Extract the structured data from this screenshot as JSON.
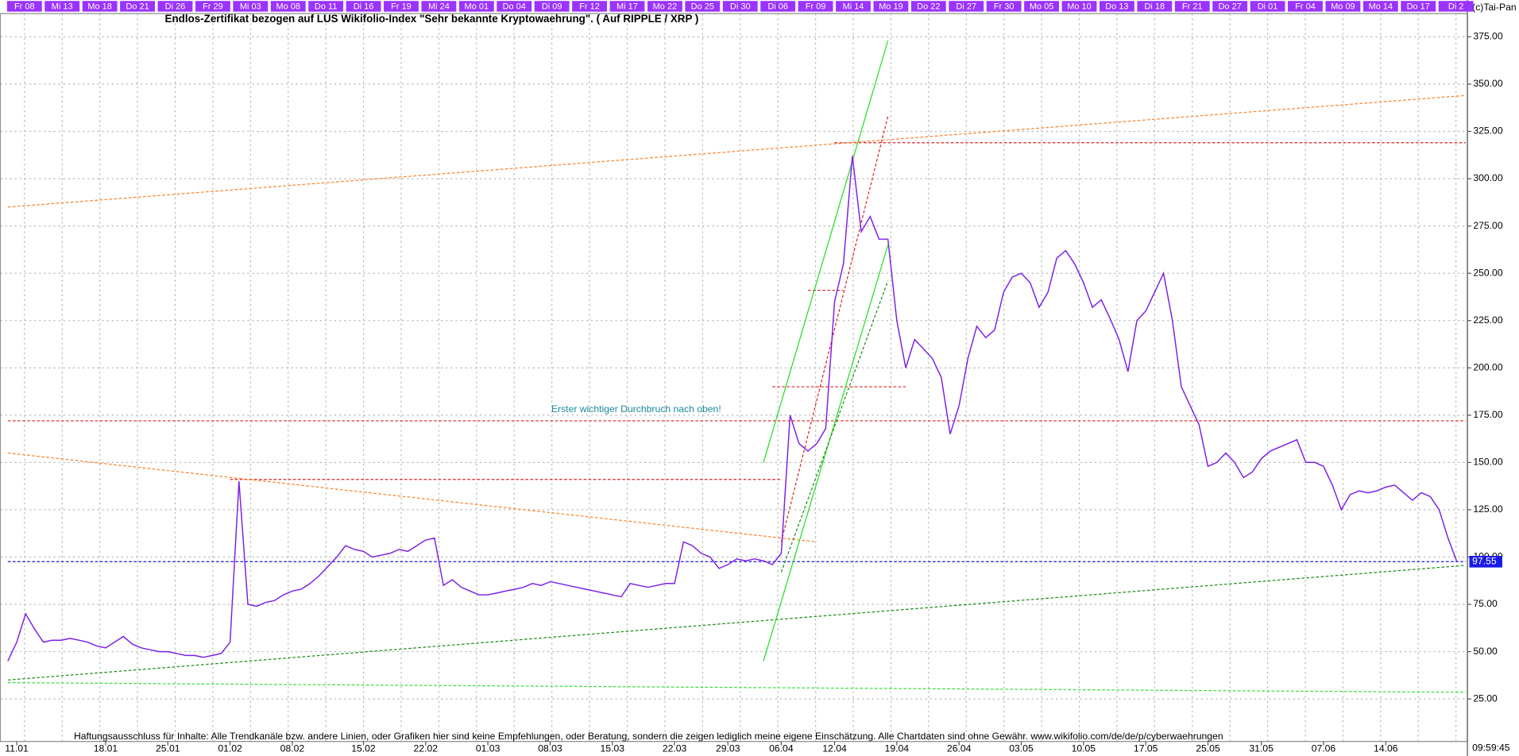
{
  "chart_data": {
    "type": "line",
    "title": "Endlos-Zertifikat bezogen auf LUS Wikifolio-Index \"Sehr bekannte Kryptowaehrung\". ( Auf RIPPLE / XRP )",
    "watermark": "(c)Tai-Pan",
    "time": "09:59:45",
    "annotation": "Erster wichtiger Durchbruch nach oben!",
    "disclaimer": "Haftungsausschluss für Inhalte: Alle Trendkanäle bzw. andere Linien, oder Grafiken hier sind keine Empfehlungen, oder Beratung, sondern die zeigen lediglich meine eigene Einschätzung. Alle Chartdaten sind ohne Gewähr.  www.wikifolio.com/de/de/p/cyberwaehrungen",
    "top_labels": [
      "Fr 08",
      "Mi 13",
      "Mo 18",
      "Do 21",
      "Di 26",
      "Fr 29",
      "Mi 03",
      "Mo 08",
      "Do 11",
      "Di 16",
      "Fr 19",
      "Mi 24",
      "Mo 01",
      "Do 04",
      "Di 09",
      "Fr 12",
      "Mi 17",
      "Mo 22",
      "Do 25",
      "Di 30",
      "Di 06",
      "Fr 09",
      "Mi 14",
      "Mo 19",
      "Do 22",
      "Di 27",
      "Fr 30",
      "Mo 05",
      "Mo 10",
      "Do 13",
      "Di 18",
      "Fr 21",
      "Do 27",
      "Di 01",
      "Fr 04",
      "Mo 09",
      "Mo 14",
      "Do 17",
      "Di 2"
    ],
    "categories": [
      null,
      "11.01",
      null,
      null,
      null,
      null,
      null,
      null,
      null,
      null,
      null,
      "18.01",
      null,
      null,
      null,
      null,
      null,
      null,
      "25.01",
      null,
      null,
      null,
      null,
      null,
      null,
      "01.02",
      null,
      null,
      null,
      null,
      null,
      null,
      "08.02",
      null,
      null,
      null,
      null,
      null,
      null,
      null,
      "15.02",
      null,
      null,
      null,
      null,
      null,
      null,
      "22.02",
      null,
      null,
      null,
      null,
      null,
      null,
      "01.03",
      null,
      null,
      null,
      null,
      null,
      null,
      "08.03",
      null,
      null,
      null,
      null,
      null,
      null,
      "15.03",
      null,
      null,
      null,
      null,
      null,
      null,
      "22.03",
      null,
      null,
      null,
      null,
      null,
      "29.03",
      null,
      null,
      null,
      null,
      null,
      "06.04",
      null,
      null,
      null,
      null,
      null,
      "12.04",
      null,
      null,
      null,
      null,
      null,
      null,
      "19.04",
      null,
      null,
      null,
      null,
      null,
      null,
      "26.04",
      null,
      null,
      null,
      null,
      null,
      null,
      "03.05",
      null,
      null,
      null,
      null,
      null,
      null,
      "10.05",
      null,
      null,
      null,
      null,
      null,
      null,
      "17.05",
      null,
      null,
      null,
      null,
      null,
      null,
      "25.05",
      null,
      null,
      null,
      null,
      null,
      "31.05",
      null,
      null,
      null,
      null,
      null,
      null,
      "07.06",
      null,
      null,
      null,
      null,
      null,
      null,
      "14.06",
      null,
      null,
      null,
      null,
      null,
      null,
      null,
      null
    ],
    "series": [
      {
        "name": "RIPPLE / XRP",
        "color": "#7b1fe6",
        "values": [
          45,
          55,
          70,
          62,
          55,
          56,
          56,
          57,
          56,
          55,
          53,
          52,
          55,
          58,
          54,
          52,
          51,
          50,
          50,
          49,
          48,
          48,
          47,
          48,
          49,
          55,
          140,
          75,
          74,
          76,
          77,
          80,
          82,
          83,
          86,
          90,
          95,
          100,
          106,
          104,
          103,
          100,
          101,
          102,
          104,
          103,
          106,
          109,
          110,
          85,
          88,
          84,
          82,
          80,
          80,
          81,
          82,
          83,
          84,
          86,
          85,
          87,
          86,
          85,
          84,
          83,
          82,
          81,
          80,
          79,
          86,
          85,
          84,
          85,
          86,
          86,
          108,
          106,
          102,
          100,
          94,
          96,
          99,
          98,
          99,
          98,
          96,
          102,
          175,
          160,
          156,
          160,
          168,
          235,
          255,
          312,
          272,
          280,
          268,
          268,
          225,
          200,
          215,
          210,
          205,
          195,
          165,
          180,
          205,
          222,
          216,
          220,
          240,
          248,
          250,
          245,
          232,
          240,
          258,
          262,
          255,
          245,
          232,
          236,
          226,
          215,
          198,
          225,
          230,
          240,
          250,
          225,
          190,
          180,
          170,
          148,
          150,
          155,
          150,
          142,
          145,
          152,
          156,
          158,
          160,
          162,
          150,
          150,
          148,
          138,
          125,
          133,
          135,
          134,
          135,
          137,
          138,
          134,
          130,
          134,
          132,
          125,
          110,
          97.55
        ]
      }
    ],
    "last_label": "97.55",
    "ylim": [
      2.5,
      387.3
    ],
    "yticks": [
      {
        "value": 25,
        "label": "25.00"
      },
      {
        "value": 50,
        "label": "50.00"
      },
      {
        "value": 75,
        "label": "75.00"
      },
      {
        "value": 100,
        "label": "100.00"
      },
      {
        "value": 125,
        "label": "125.00"
      },
      {
        "value": 150,
        "label": "150.00"
      },
      {
        "value": 175,
        "label": "175.00"
      },
      {
        "value": 200,
        "label": "200.00"
      },
      {
        "value": 225,
        "label": "225.00"
      },
      {
        "value": 250,
        "label": "250.00"
      },
      {
        "value": 275,
        "label": "275.00"
      },
      {
        "value": 300,
        "label": "300.00"
      },
      {
        "value": 325,
        "label": "325.00"
      },
      {
        "value": 350,
        "label": "350.00"
      },
      {
        "value": 375,
        "label": "375.00"
      }
    ],
    "grid": true,
    "hlines": [
      {
        "value": 319,
        "color": "#e02020",
        "from": 93,
        "to": 164
      },
      {
        "value": 172,
        "color": "#e02020",
        "from": 0,
        "to": 164
      },
      {
        "value": 141,
        "color": "#e02020",
        "from": 25,
        "to": 87
      },
      {
        "value": 190,
        "color": "#e02020",
        "from": 86,
        "to": 101
      },
      {
        "value": 241,
        "color": "#e02020",
        "from": 90,
        "to": 94
      },
      {
        "value": 97.55,
        "color": "#1a1ae6",
        "from": 0,
        "to": 164
      }
    ],
    "lines": [
      {
        "x": [
          0,
          164
        ],
        "y": [
          285,
          344
        ],
        "color": "#ff7f27",
        "dashed": true
      },
      {
        "x": [
          0,
          91
        ],
        "y": [
          155,
          108
        ],
        "color": "#ff7f27",
        "dashed": true
      },
      {
        "x": [
          0,
          164
        ],
        "y": [
          35,
          95.6
        ],
        "color": "#1a8a1a",
        "dashed": true
      },
      {
        "x": [
          0,
          164
        ],
        "y": [
          33.6,
          28.5
        ],
        "color": "#33dd33",
        "dashed": true
      },
      {
        "x": [
          85,
          99
        ],
        "y": [
          150,
          373
        ],
        "color": "#22dd22",
        "dashed": false
      },
      {
        "x": [
          85,
          99
        ],
        "y": [
          45,
          265
        ],
        "color": "#22dd22",
        "dashed": false
      },
      {
        "x": [
          87,
          99
        ],
        "y": [
          92,
          246
        ],
        "color": "#1a8a1a",
        "dashed": true
      },
      {
        "x": [
          87,
          99
        ],
        "y": [
          108,
          333
        ],
        "color": "#e02020",
        "dashed": true
      }
    ]
  }
}
